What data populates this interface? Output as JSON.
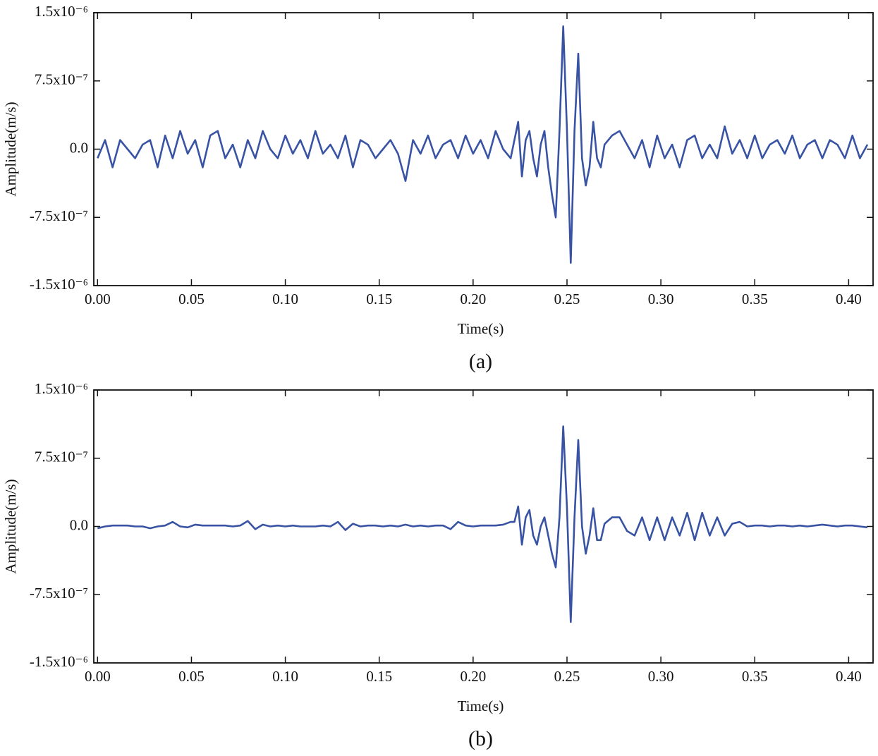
{
  "chart_data": [
    {
      "type": "line",
      "x_label": "Time(s)",
      "y_label": "Amplitude(m/s)",
      "caption": "(a)",
      "color": "#3953a4",
      "xlim": [
        -0.002,
        0.413
      ],
      "ylim": [
        -1.5e-06,
        1.5e-06
      ],
      "xticks": [
        {
          "value": 0,
          "label": "0.00"
        },
        0.05,
        {
          "value": 0.1,
          "label": "0.10"
        },
        0.15,
        {
          "value": 0.2,
          "label": "0.20"
        },
        0.25,
        {
          "value": 0.3,
          "label": "0.30"
        },
        0.35,
        {
          "value": 0.4,
          "label": "0.40"
        }
      ],
      "yticks": [
        {
          "value": -1.5e-06,
          "label": "-1.5x10⁻⁶"
        },
        {
          "value": -7.5e-07,
          "label": "-7.5x10⁻⁷"
        },
        {
          "value": 0,
          "label": "0.0"
        },
        {
          "value": 7.5e-07,
          "label": "7.5x10⁻⁷"
        },
        {
          "value": 1.5e-06,
          "label": "1.5x10⁻⁶"
        }
      ],
      "x": [
        0,
        0.004,
        0.008,
        0.012,
        0.016,
        0.02,
        0.024,
        0.028,
        0.032,
        0.036,
        0.04,
        0.044,
        0.048,
        0.052,
        0.056,
        0.06,
        0.064,
        0.068,
        0.072,
        0.076,
        0.08,
        0.084,
        0.088,
        0.092,
        0.096,
        0.1,
        0.104,
        0.108,
        0.112,
        0.116,
        0.12,
        0.124,
        0.128,
        0.132,
        0.136,
        0.14,
        0.144,
        0.148,
        0.152,
        0.156,
        0.16,
        0.164,
        0.168,
        0.172,
        0.176,
        0.18,
        0.184,
        0.188,
        0.192,
        0.196,
        0.2,
        0.204,
        0.208,
        0.212,
        0.216,
        0.22,
        0.222,
        0.224,
        0.226,
        0.228,
        0.23,
        0.232,
        0.234,
        0.236,
        0.238,
        0.24,
        0.242,
        0.244,
        0.246,
        0.248,
        0.25,
        0.252,
        0.254,
        0.256,
        0.258,
        0.26,
        0.262,
        0.264,
        0.266,
        0.268,
        0.27,
        0.274,
        0.278,
        0.282,
        0.286,
        0.29,
        0.294,
        0.298,
        0.302,
        0.306,
        0.31,
        0.314,
        0.318,
        0.322,
        0.326,
        0.33,
        0.334,
        0.338,
        0.342,
        0.346,
        0.35,
        0.354,
        0.358,
        0.362,
        0.366,
        0.37,
        0.374,
        0.378,
        0.382,
        0.386,
        0.39,
        0.394,
        0.398,
        0.402,
        0.406,
        0.41
      ],
      "values": [
        -1e-07,
        1e-07,
        -2e-07,
        1e-07,
        0,
        -1e-07,
        5e-08,
        1e-07,
        -2e-07,
        1.5e-07,
        -1e-07,
        2e-07,
        -5e-08,
        1e-07,
        -2e-07,
        1.5e-07,
        2e-07,
        -1e-07,
        5e-08,
        -2e-07,
        1e-07,
        -1e-07,
        2e-07,
        0,
        -1e-07,
        1.5e-07,
        -5e-08,
        1e-07,
        -1e-07,
        2e-07,
        -5e-08,
        5e-08,
        -1e-07,
        1.5e-07,
        -2e-07,
        1e-07,
        5e-08,
        -1e-07,
        0,
        1e-07,
        -5e-08,
        -3.5e-07,
        1e-07,
        -5e-08,
        1.5e-07,
        -1e-07,
        5e-08,
        1e-07,
        -1e-07,
        1.5e-07,
        -5e-08,
        1e-07,
        -1e-07,
        2e-07,
        0,
        -1e-07,
        1e-07,
        3e-07,
        -3e-07,
        1e-07,
        2e-07,
        -1e-07,
        -3e-07,
        5e-08,
        2e-07,
        -2e-07,
        -5e-07,
        -7.5e-07,
        2e-07,
        1.35e-06,
        2e-07,
        -1.25e-06,
        2e-07,
        1.05e-06,
        -1e-07,
        -4e-07,
        -2e-07,
        3e-07,
        -1e-07,
        -2e-07,
        5e-08,
        1.5e-07,
        2e-07,
        5e-08,
        -1e-07,
        1e-07,
        -2e-07,
        1.5e-07,
        -1e-07,
        5e-08,
        -2e-07,
        1e-07,
        1.5e-07,
        -1e-07,
        5e-08,
        -1e-07,
        2.5e-07,
        -5e-08,
        1e-07,
        -1e-07,
        1.5e-07,
        -1e-07,
        5e-08,
        1e-07,
        -5e-08,
        1.5e-07,
        -1e-07,
        5e-08,
        1e-07,
        -1e-07,
        1e-07,
        5e-08,
        -1e-07,
        1.5e-07,
        -1e-07,
        5e-08
      ]
    },
    {
      "type": "line",
      "x_label": "Time(s)",
      "y_label": "Amplitude(m/s)",
      "caption": "(b)",
      "color": "#3953a4",
      "xlim": [
        -0.002,
        0.413
      ],
      "ylim": [
        -1.5e-06,
        1.5e-06
      ],
      "xticks": [
        {
          "value": 0,
          "label": "0.00"
        },
        0.05,
        {
          "value": 0.1,
          "label": "0.10"
        },
        0.15,
        {
          "value": 0.2,
          "label": "0.20"
        },
        0.25,
        {
          "value": 0.3,
          "label": "0.30"
        },
        0.35,
        {
          "value": 0.4,
          "label": "0.40"
        }
      ],
      "yticks": [
        {
          "value": -1.5e-06,
          "label": "-1.5x10⁻⁶"
        },
        {
          "value": -7.5e-07,
          "label": "-7.5x10⁻⁷"
        },
        {
          "value": 0,
          "label": "0.0"
        },
        {
          "value": 7.5e-07,
          "label": "7.5x10⁻⁷"
        },
        {
          "value": 1.5e-06,
          "label": "1.5x10⁻⁶"
        }
      ],
      "x": [
        0,
        0.004,
        0.008,
        0.012,
        0.016,
        0.02,
        0.024,
        0.028,
        0.032,
        0.036,
        0.04,
        0.044,
        0.048,
        0.052,
        0.056,
        0.06,
        0.064,
        0.068,
        0.072,
        0.076,
        0.08,
        0.084,
        0.088,
        0.092,
        0.096,
        0.1,
        0.104,
        0.108,
        0.112,
        0.116,
        0.12,
        0.124,
        0.128,
        0.132,
        0.136,
        0.14,
        0.144,
        0.148,
        0.152,
        0.156,
        0.16,
        0.164,
        0.168,
        0.172,
        0.176,
        0.18,
        0.184,
        0.188,
        0.192,
        0.196,
        0.2,
        0.204,
        0.208,
        0.212,
        0.216,
        0.22,
        0.222,
        0.224,
        0.226,
        0.228,
        0.23,
        0.232,
        0.234,
        0.236,
        0.238,
        0.24,
        0.242,
        0.244,
        0.246,
        0.248,
        0.25,
        0.252,
        0.254,
        0.256,
        0.258,
        0.26,
        0.262,
        0.264,
        0.266,
        0.268,
        0.27,
        0.274,
        0.278,
        0.282,
        0.286,
        0.29,
        0.294,
        0.298,
        0.302,
        0.306,
        0.31,
        0.314,
        0.318,
        0.322,
        0.326,
        0.33,
        0.334,
        0.338,
        0.342,
        0.346,
        0.35,
        0.354,
        0.358,
        0.362,
        0.366,
        0.37,
        0.374,
        0.378,
        0.382,
        0.386,
        0.39,
        0.394,
        0.398,
        0.402,
        0.406,
        0.41
      ],
      "values": [
        -2e-08,
        0,
        1e-08,
        1e-08,
        1e-08,
        0,
        0,
        -2e-08,
        0,
        1e-08,
        5e-08,
        0,
        -1e-08,
        2e-08,
        1e-08,
        1e-08,
        1e-08,
        1e-08,
        0,
        1e-08,
        6e-08,
        -3e-08,
        2e-08,
        0,
        1e-08,
        0,
        1e-08,
        0,
        0,
        0,
        1e-08,
        0,
        5e-08,
        -4e-08,
        3e-08,
        0,
        1e-08,
        1e-08,
        0,
        1e-08,
        0,
        2e-08,
        0,
        1e-08,
        0,
        1e-08,
        1e-08,
        -3e-08,
        5e-08,
        1e-08,
        0,
        1e-08,
        1e-08,
        1e-08,
        2e-08,
        5e-08,
        5e-08,
        2.2e-07,
        -2e-07,
        1e-07,
        1.8e-07,
        -1e-07,
        -2e-07,
        0,
        1e-07,
        -1e-07,
        -3e-07,
        -4.5e-07,
        1e-07,
        1.1e-06,
        2e-07,
        -1.05e-06,
        1e-07,
        9.5e-07,
        0,
        -3e-07,
        -1e-07,
        2e-07,
        -1.5e-07,
        -1.5e-07,
        3e-08,
        1e-07,
        1e-07,
        -5e-08,
        -1e-07,
        1e-07,
        -1.5e-07,
        1e-07,
        -1.5e-07,
        1e-07,
        -1e-07,
        1.5e-07,
        -1.5e-07,
        1.5e-07,
        -1e-07,
        1e-07,
        -1e-07,
        3e-08,
        5e-08,
        0,
        1e-08,
        1e-08,
        0,
        1e-08,
        1e-08,
        0,
        1e-08,
        0,
        1e-08,
        2e-08,
        1e-08,
        0,
        1e-08,
        1e-08,
        0,
        -1e-08
      ]
    }
  ]
}
